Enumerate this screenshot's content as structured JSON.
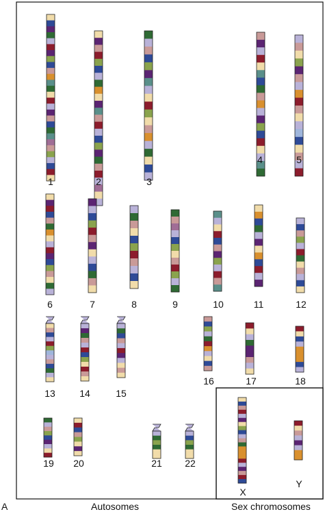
{
  "panel_letter": "A",
  "groups": {
    "autosomes": "Autosomes",
    "sex": "Sex chromosomes"
  },
  "palette": {
    "cream": "#f1dcaa",
    "lavender": "#b9b2d8",
    "blue": "#2e4a97",
    "purple": "#5b2472",
    "maroon": "#8c1c2c",
    "green": "#2f6a34",
    "olive": "#8aa34d",
    "orange": "#d9902e",
    "pink": "#c99a98",
    "teal": "#5a8f8a",
    "mauve": "#a06e96",
    "sky": "#9fb6dc"
  },
  "chromosomes": [
    {
      "id": "c1",
      "label": "1",
      "bands": [
        "cream",
        "blue",
        "purple",
        "green",
        "lavender",
        "maroon",
        "purple",
        "olive",
        "blue",
        "pink",
        "orange",
        "teal",
        "green",
        "cream",
        "maroon",
        "lavender",
        "purple",
        "pink",
        "blue",
        "green",
        "teal",
        "mauve",
        "pink",
        "olive",
        "lavender",
        "blue",
        "maroon",
        "cream"
      ]
    },
    {
      "id": "c2",
      "label": "2",
      "bands": [
        "cream",
        "purple",
        "pink",
        "maroon",
        "olive",
        "blue",
        "lavender",
        "green",
        "orange",
        "cream",
        "purple",
        "teal",
        "pink",
        "maroon",
        "lavender",
        "blue",
        "olive",
        "purple",
        "green",
        "pink",
        "maroon",
        "lavender",
        "mauve",
        "cream",
        "lavender"
      ]
    },
    {
      "id": "c3",
      "label": "3",
      "bands": [
        "green",
        "lavender",
        "pink",
        "blue",
        "olive",
        "purple",
        "teal",
        "lavender",
        "cream",
        "maroon",
        "olive",
        "cream",
        "pink",
        "orange",
        "lavender",
        "green",
        "cream",
        "blue",
        "lavender"
      ]
    },
    {
      "id": "c4",
      "label": "4",
      "bands": [
        "pink",
        "purple",
        "lavender",
        "maroon",
        "cream",
        "teal",
        "blue",
        "green",
        "pink",
        "orange",
        "lavender",
        "purple",
        "olive",
        "blue",
        "maroon",
        "cream",
        "lavender",
        "teal",
        "green"
      ]
    },
    {
      "id": "c5",
      "label": "5",
      "bands": [
        "lavender",
        "pink",
        "cream",
        "olive",
        "purple",
        "pink",
        "lavender",
        "orange",
        "maroon",
        "pink",
        "cream",
        "lavender",
        "sky",
        "blue",
        "cream",
        "pink",
        "lavender",
        "maroon"
      ]
    },
    {
      "id": "c6",
      "label": "6",
      "bands": [
        "cream",
        "purple",
        "maroon",
        "blue",
        "pink",
        "green",
        "orange",
        "cream",
        "lavender",
        "maroon",
        "purple",
        "blue",
        "olive",
        "pink",
        "cream",
        "green",
        "lavender"
      ]
    },
    {
      "id": "c7",
      "label": "7",
      "bands": [
        "purple",
        "lavender",
        "blue",
        "olive",
        "maroon",
        "pink",
        "purple",
        "cream",
        "lavender",
        "blue",
        "green",
        "pink",
        "cream"
      ]
    },
    {
      "id": "c8",
      "label": "8",
      "bands": [
        "lavender",
        "green",
        "pink",
        "cream",
        "blue",
        "olive",
        "maroon",
        "pink",
        "lavender",
        "blue",
        "cream"
      ]
    },
    {
      "id": "c9",
      "label": "9",
      "bands": [
        "green",
        "pink",
        "mauve",
        "lavender",
        "blue",
        "olive",
        "cream",
        "pink",
        "maroon",
        "olive",
        "lavender",
        "green"
      ]
    },
    {
      "id": "c10",
      "label": "10",
      "bands": [
        "teal",
        "lavender",
        "cream",
        "maroon",
        "blue",
        "pink",
        "purple",
        "olive",
        "lavender",
        "maroon",
        "pink",
        "teal"
      ]
    },
    {
      "id": "c11",
      "label": "11",
      "bands": [
        "cream",
        "orange",
        "blue",
        "green",
        "lavender",
        "purple",
        "cream",
        "orange",
        "blue",
        "maroon",
        "lavender",
        "purple"
      ]
    },
    {
      "id": "c12",
      "label": "12",
      "bands": [
        "lavender",
        "blue",
        "pink",
        "olive",
        "lavender",
        "maroon",
        "green",
        "cream",
        "pink",
        "lavender",
        "blue",
        "cream"
      ]
    },
    {
      "id": "c13",
      "label": "13",
      "cap": true,
      "bands": [
        "cream",
        "pink",
        "blue",
        "lavender",
        "maroon",
        "olive",
        "sky",
        "lavender",
        "pink",
        "blue",
        "green",
        "lavender",
        "cream"
      ]
    },
    {
      "id": "c14",
      "label": "14",
      "cap": true,
      "bands": [
        "lavender",
        "purple",
        "green",
        "pink",
        "lavender",
        "maroon",
        "blue",
        "olive",
        "cream",
        "maroon",
        "pink",
        "cream"
      ]
    },
    {
      "id": "c15",
      "label": "15",
      "cap": true,
      "bands": [
        "lavender",
        "green",
        "blue",
        "pink",
        "lavender",
        "maroon",
        "purple",
        "lavender",
        "cream",
        "pink",
        "cream"
      ]
    },
    {
      "id": "c16",
      "label": "16",
      "bands": [
        "pink",
        "blue",
        "olive",
        "lavender",
        "green",
        "maroon",
        "orange",
        "lavender",
        "cream",
        "blue",
        "pink"
      ]
    },
    {
      "id": "c17",
      "label": "17",
      "bands": [
        "maroon",
        "cream",
        "lavender",
        "green",
        "purple",
        "purple",
        "pink",
        "lavender",
        "cream"
      ]
    },
    {
      "id": "c18",
      "label": "18",
      "bands": [
        "maroon",
        "cream",
        "blue",
        "lavender",
        "orange",
        "orange",
        "orange",
        "blue",
        "lavender"
      ]
    },
    {
      "id": "c19",
      "label": "19",
      "bands": [
        "green",
        "lavender",
        "pink",
        "olive",
        "blue",
        "purple",
        "lavender",
        "cream",
        "maroon"
      ]
    },
    {
      "id": "c20",
      "label": "20",
      "bands": [
        "cream",
        "maroon",
        "blue",
        "pink",
        "olive",
        "cream",
        "purple",
        "cream"
      ]
    },
    {
      "id": "c21",
      "label": "21",
      "cap": true,
      "bands": [
        "lavender",
        "green",
        "olive",
        "green",
        "cream",
        "cream"
      ]
    },
    {
      "id": "c22",
      "label": "22",
      "cap": true,
      "bands": [
        "lavender",
        "blue",
        "olive",
        "green",
        "cream",
        "cream"
      ]
    },
    {
      "id": "cX",
      "label": "X",
      "bands": [
        "cream",
        "blue",
        "pink",
        "maroon",
        "lavender",
        "purple",
        "cream",
        "olive",
        "blue",
        "lavender",
        "pink",
        "green",
        "orange",
        "orange",
        "orange",
        "maroon",
        "lavender",
        "purple",
        "pink",
        "maroon",
        "blue"
      ]
    },
    {
      "id": "cY",
      "label": "Y",
      "bands": [
        "maroon",
        "cream",
        "pink",
        "lavender",
        "purple",
        "lavender",
        "orange",
        "orange"
      ]
    }
  ]
}
